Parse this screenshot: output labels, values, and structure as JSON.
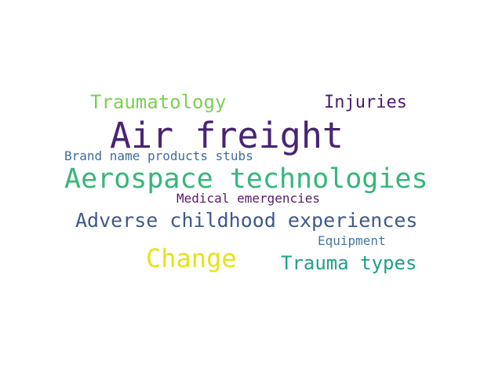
{
  "words": [
    {
      "text": "Air freight",
      "color": "#482475"
    },
    {
      "text": "Aerospace technologies",
      "color": "#35b779"
    },
    {
      "text": "Adverse childhood experiences",
      "color": "#3e5a8c"
    },
    {
      "text": "Change",
      "color": "#e3e418"
    },
    {
      "text": "Trauma types",
      "color": "#21a087"
    },
    {
      "text": "Traumatology",
      "color": "#7ad151"
    },
    {
      "text": "Injuries",
      "color": "#4a1e6e"
    },
    {
      "text": "Brand name products stubs",
      "color": "#3f6e97"
    },
    {
      "text": "Medical emergencies",
      "color": "#5a1a69"
    },
    {
      "text": "Equipment",
      "color": "#4a78a0"
    }
  ]
}
